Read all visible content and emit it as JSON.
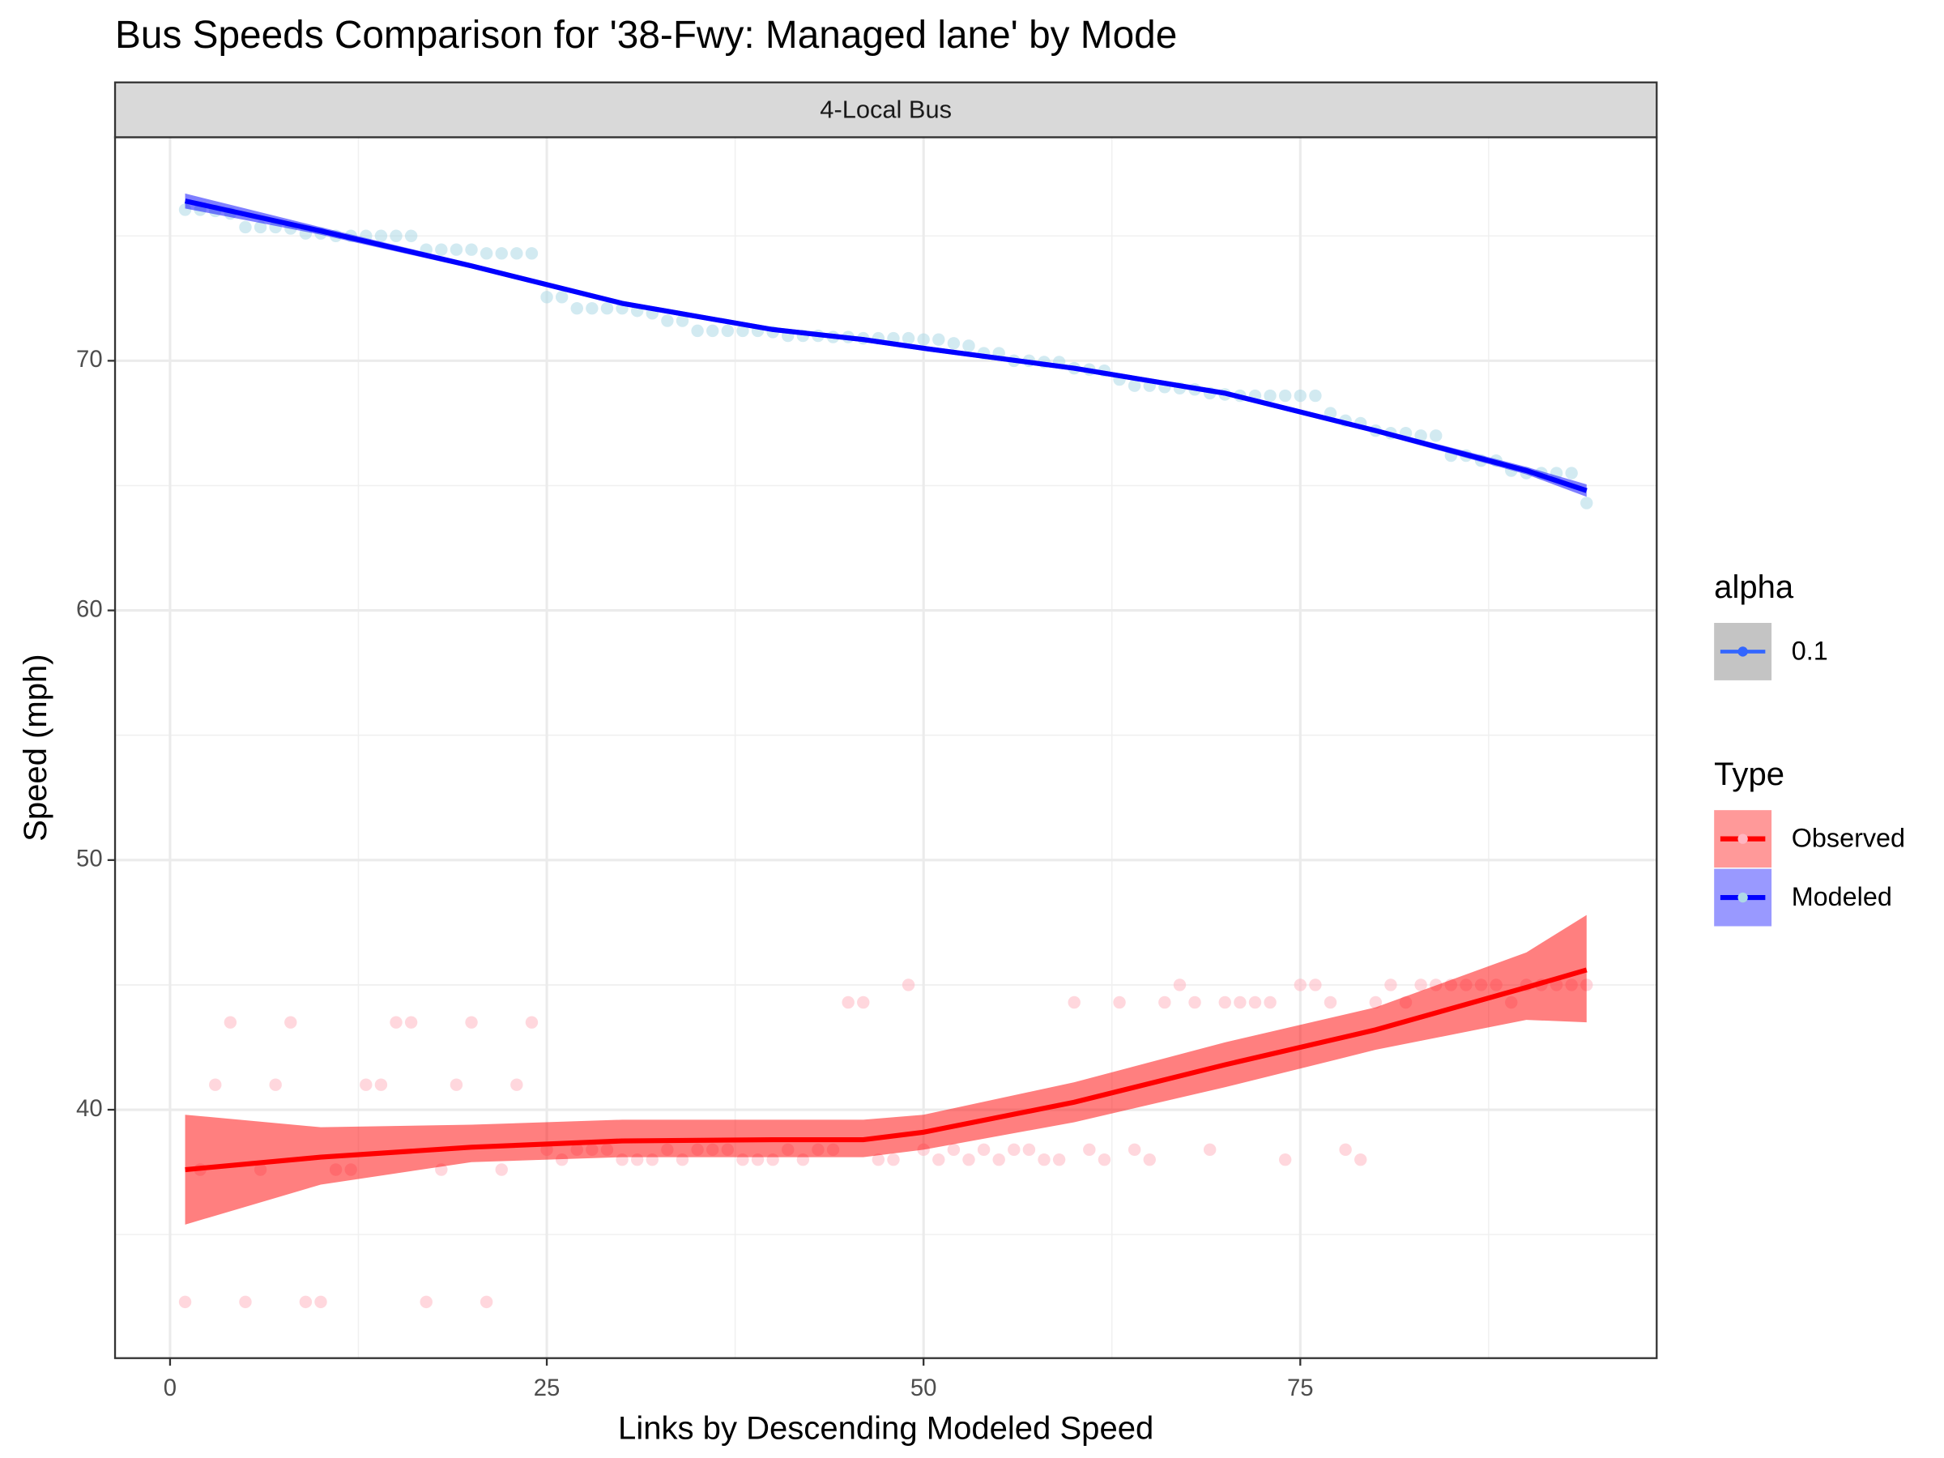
{
  "chart_data": {
    "type": "scatter",
    "title": "Bus Speeds Comparison for '38-Fwy: Managed lane' by Mode",
    "strip": "4-Local Bus",
    "x_label": "Links by Descending Modeled Speed",
    "y_label": "Speed (mph)",
    "xlim": [
      -3.65,
      98.65
    ],
    "ylim": [
      30.05,
      78.95
    ],
    "xticks": [
      0,
      25,
      50,
      75
    ],
    "yticks": [
      40,
      50,
      60,
      70
    ],
    "grid": true,
    "alpha_legend": {
      "title": "alpha",
      "label": "0.1",
      "color": "#3366ff"
    },
    "type_legend": {
      "title": "Type"
    },
    "series": [
      {
        "name": "Observed",
        "color": "#ff0000",
        "point_color": "#ffb6c1",
        "x": [
          1,
          2,
          3,
          4,
          5,
          6,
          7,
          8,
          9,
          10,
          11,
          12,
          13,
          14,
          15,
          16,
          17,
          18,
          19,
          20,
          21,
          22,
          23,
          24,
          25,
          26,
          27,
          28,
          29,
          30,
          31,
          32,
          33,
          34,
          35,
          36,
          37,
          38,
          39,
          40,
          41,
          42,
          43,
          44,
          45,
          46,
          47,
          48,
          49,
          50,
          51,
          52,
          53,
          54,
          55,
          56,
          57,
          58,
          59,
          60,
          61,
          62,
          63,
          64,
          65,
          66,
          67,
          68,
          69,
          70,
          71,
          72,
          73,
          74,
          75,
          76,
          77,
          78,
          79,
          80,
          81,
          82,
          83,
          84,
          85,
          86,
          87,
          88,
          89,
          90,
          91,
          92,
          93,
          94
        ],
        "values": [
          32.3,
          37.6,
          41,
          43.5,
          32.3,
          37.6,
          41,
          43.5,
          32.3,
          32.3,
          37.6,
          37.6,
          41,
          41,
          43.5,
          43.5,
          32.3,
          37.6,
          41,
          43.5,
          32.3,
          37.6,
          41,
          43.5,
          38.4,
          38,
          38.4,
          38.4,
          38.4,
          38,
          38,
          38,
          38.4,
          38,
          38.4,
          38.4,
          38.4,
          38,
          38,
          38,
          38.4,
          38,
          38.4,
          38.4,
          44.3,
          44.3,
          38,
          38,
          45,
          38.4,
          38,
          38.4,
          38,
          38.4,
          38,
          38.4,
          38.4,
          38,
          38,
          44.3,
          38.4,
          38,
          44.3,
          38.4,
          38,
          44.3,
          45,
          44.3,
          38.4,
          44.3,
          44.3,
          44.3,
          44.3,
          38,
          45,
          45,
          44.3,
          38.4,
          38,
          44.3,
          45,
          44.3,
          45,
          45,
          45,
          45,
          45,
          45,
          44.3,
          45,
          45,
          45,
          45,
          45
        ],
        "smooth": {
          "x": [
            1,
            10,
            20,
            30,
            40,
            46,
            50,
            60,
            70,
            80,
            90,
            94
          ],
          "values": [
            37.6,
            38.1,
            38.5,
            38.75,
            38.8,
            38.8,
            39.1,
            40.3,
            41.8,
            43.2,
            44.9,
            45.6
          ],
          "lower": [
            35.4,
            37,
            37.9,
            38.1,
            38.1,
            38.1,
            38.4,
            39.5,
            40.9,
            42.4,
            43.6,
            43.5
          ],
          "upper": [
            39.8,
            39.3,
            39.4,
            39.6,
            39.6,
            39.6,
            39.8,
            41.1,
            42.7,
            44.1,
            46.3,
            47.8
          ]
        }
      },
      {
        "name": "Modeled",
        "color": "#0000ff",
        "point_color": "#add8e6",
        "x": [
          1,
          2,
          3,
          4,
          5,
          6,
          7,
          8,
          9,
          10,
          11,
          12,
          13,
          14,
          15,
          16,
          17,
          18,
          19,
          20,
          21,
          22,
          23,
          24,
          25,
          26,
          27,
          28,
          29,
          30,
          31,
          32,
          33,
          34,
          35,
          36,
          37,
          38,
          39,
          40,
          41,
          42,
          43,
          44,
          45,
          46,
          47,
          48,
          49,
          50,
          51,
          52,
          53,
          54,
          55,
          56,
          57,
          58,
          59,
          60,
          61,
          62,
          63,
          64,
          65,
          66,
          67,
          68,
          69,
          70,
          71,
          72,
          73,
          74,
          75,
          76,
          77,
          78,
          79,
          80,
          81,
          82,
          83,
          84,
          85,
          86,
          87,
          88,
          89,
          90,
          91,
          92,
          93,
          94
        ],
        "values": [
          76.05,
          76.05,
          76,
          75.9,
          75.35,
          75.35,
          75.35,
          75.3,
          75.1,
          75.1,
          75,
          75,
          75,
          75,
          75,
          75,
          74.45,
          74.45,
          74.45,
          74.45,
          74.3,
          74.3,
          74.3,
          74.3,
          72.55,
          72.55,
          72.1,
          72.1,
          72.1,
          72.1,
          72,
          71.9,
          71.6,
          71.6,
          71.2,
          71.2,
          71.2,
          71.2,
          71.2,
          71.15,
          71,
          71,
          71,
          70.95,
          70.95,
          70.9,
          70.9,
          70.9,
          70.9,
          70.85,
          70.85,
          70.7,
          70.6,
          70.3,
          70.3,
          70,
          70,
          69.95,
          69.95,
          69.7,
          69.65,
          69.6,
          69.25,
          69,
          69,
          68.95,
          68.9,
          68.85,
          68.7,
          68.65,
          68.6,
          68.6,
          68.6,
          68.6,
          68.6,
          68.6,
          67.9,
          67.6,
          67.5,
          67.2,
          67.1,
          67.1,
          67,
          67,
          66.2,
          66.2,
          66,
          66,
          65.6,
          65.5,
          65.5,
          65.5,
          65.5,
          64.3
        ],
        "smooth": {
          "x": [
            1,
            10,
            20,
            30,
            40,
            46,
            50,
            60,
            70,
            80,
            90,
            94
          ],
          "values": [
            76.4,
            75.2,
            73.8,
            72.3,
            71.25,
            70.85,
            70.5,
            69.7,
            68.7,
            67.2,
            65.6,
            64.8
          ],
          "lower": [
            76.1,
            75.05,
            73.7,
            72.2,
            71.15,
            70.75,
            70.4,
            69.6,
            68.6,
            67.1,
            65.45,
            64.55
          ],
          "upper": [
            76.7,
            75.35,
            73.9,
            72.4,
            71.35,
            70.95,
            70.6,
            69.8,
            68.8,
            67.3,
            65.75,
            65.05
          ]
        }
      }
    ]
  }
}
